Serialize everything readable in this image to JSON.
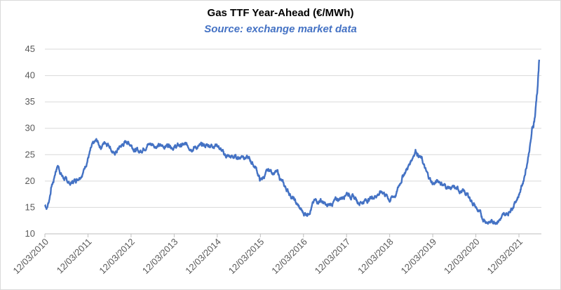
{
  "chart_data": {
    "type": "line",
    "title": "Gas TTF Year-Ahead (€/MWh)",
    "subtitle": "Source: exchange market data",
    "xlabel": "",
    "ylabel": "",
    "ylim": [
      10,
      45
    ],
    "yticks": [
      "10",
      "15",
      "20",
      "25",
      "30",
      "35",
      "40",
      "45"
    ],
    "xticks": [
      "12/03/2010",
      "12/03/2011",
      "12/03/2012",
      "12/03/2013",
      "12/03/2014",
      "12/03/2015",
      "12/03/2016",
      "12/03/2017",
      "12/03/2018",
      "12/03/2019",
      "12/03/2020",
      "12/03/2021"
    ],
    "grid": "horizontal",
    "legend": "none",
    "line_color": "#4472c4",
    "series": [
      {
        "x": [
          2010.0,
          2010.05,
          2010.1,
          2010.15,
          2010.2,
          2010.25,
          2010.3,
          2010.4,
          2010.5,
          2010.6,
          2010.75,
          2010.9,
          2011.0,
          2011.1,
          2011.2,
          2011.3,
          2011.4,
          2011.5,
          2011.6,
          2011.75,
          2011.9,
          2012.0,
          2012.1,
          2012.2,
          2012.3,
          2012.4,
          2012.5,
          2012.7,
          2012.9,
          2013.0,
          2013.2,
          2013.4,
          2013.6,
          2013.8,
          2014.0,
          2014.15,
          2014.3,
          2014.5,
          2014.6,
          2014.75,
          2014.9,
          2015.0,
          2015.2,
          2015.4,
          2015.55,
          2015.7,
          2015.85,
          2016.0,
          2016.1,
          2016.25,
          2016.4,
          2016.55,
          2016.7,
          2016.9,
          2017.0,
          2017.15,
          2017.3,
          2017.5,
          2017.7,
          2017.85,
          2018.0,
          2018.15,
          2018.3,
          2018.45,
          2018.6,
          2018.75,
          2018.85,
          2019.0,
          2019.15,
          2019.3,
          2019.5,
          2019.7,
          2019.85,
          2020.0,
          2020.15,
          2020.3,
          2020.45,
          2020.6,
          2020.75,
          2020.9,
          2021.0,
          2021.1,
          2021.2,
          2021.3,
          2021.38,
          2021.43,
          2021.47
        ],
        "y": [
          15.5,
          15.0,
          16.5,
          19.0,
          20.0,
          22.0,
          23.0,
          21.0,
          20.0,
          19.5,
          20.5,
          22.0,
          24.5,
          26.5,
          27.5,
          26.5,
          27.5,
          27.0,
          25.0,
          26.5,
          27.5,
          27.0,
          26.0,
          25.5,
          26.5,
          27.0,
          27.0,
          26.5,
          27.0,
          26.5,
          26.8,
          26.5,
          26.5,
          26.8,
          27.0,
          25.0,
          24.5,
          24.5,
          25.0,
          24.0,
          22.5,
          20.0,
          22.0,
          21.5,
          19.0,
          17.5,
          15.5,
          13.8,
          14.0,
          16.0,
          16.5,
          15.0,
          16.0,
          17.0,
          18.0,
          17.0,
          16.0,
          16.5,
          17.5,
          18.0,
          16.5,
          17.5,
          21.0,
          23.0,
          26.0,
          24.0,
          21.5,
          19.5,
          20.0,
          19.0,
          18.5,
          18.0,
          17.0,
          15.0,
          13.0,
          12.2,
          12.5,
          13.0,
          14.0,
          16.0,
          17.5,
          20.0,
          24.0,
          29.0,
          33.0,
          38.0,
          43.0
        ]
      }
    ]
  }
}
